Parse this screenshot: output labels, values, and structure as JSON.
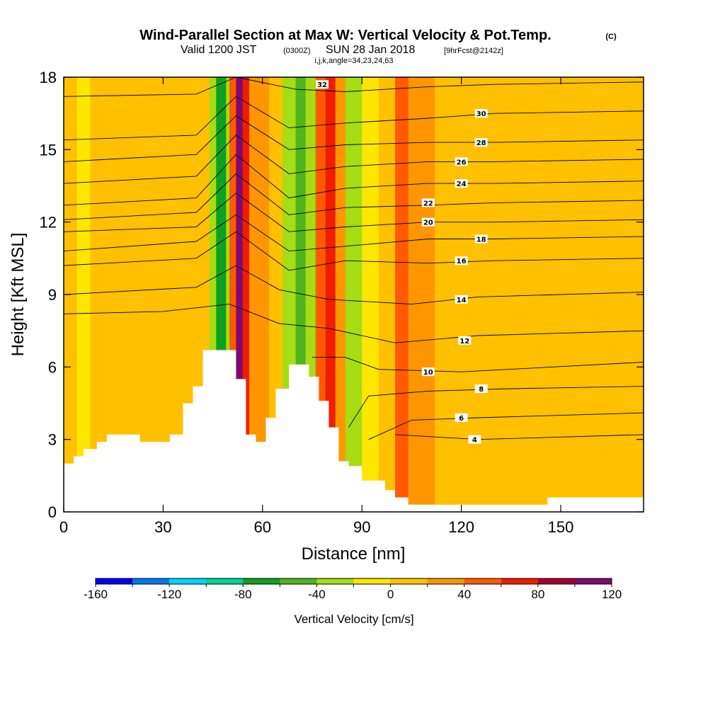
{
  "header": {
    "title": "Wind-Parallel Section at Max W: Vertical Velocity & Pot.Temp.",
    "title_mark": "(C)",
    "valid_prefix": "Valid 1200 JST",
    "valid_utc": "(0300Z)",
    "valid_date": "SUN 28 Jan 2018",
    "valid_fcst": "[9hrFcst@2142z]",
    "grid_info": "i,j,k,angle=34,23,24,63"
  },
  "chart_data": {
    "type": "heatmap",
    "xlabel": "Distance [nm]",
    "ylabel": "Height [Kft MSL]",
    "xlim": [
      0,
      175
    ],
    "ylim": [
      0,
      18
    ],
    "x_ticks": [
      0,
      30,
      60,
      90,
      120,
      150
    ],
    "y_ticks": [
      0,
      3,
      6,
      9,
      12,
      15,
      18
    ],
    "terrain": [
      [
        0,
        2
      ],
      [
        3,
        2
      ],
      [
        3,
        2.3
      ],
      [
        6,
        2.3
      ],
      [
        6,
        2.6
      ],
      [
        10,
        2.6
      ],
      [
        10,
        2.9
      ],
      [
        13,
        2.9
      ],
      [
        13,
        3.2
      ],
      [
        23,
        3.2
      ],
      [
        23,
        2.9
      ],
      [
        32,
        2.9
      ],
      [
        32,
        3.2
      ],
      [
        36,
        3.2
      ],
      [
        36,
        4.5
      ],
      [
        39,
        4.5
      ],
      [
        39,
        5.2
      ],
      [
        42,
        5.2
      ],
      [
        42,
        6.7
      ],
      [
        52,
        6.7
      ],
      [
        52,
        5.5
      ],
      [
        55,
        5.5
      ],
      [
        55,
        3.2
      ],
      [
        58,
        3.2
      ],
      [
        58,
        2.9
      ],
      [
        61,
        2.9
      ],
      [
        61,
        3.9
      ],
      [
        64,
        3.9
      ],
      [
        64,
        5.1
      ],
      [
        68,
        5.1
      ],
      [
        68,
        6.1
      ],
      [
        74,
        6.1
      ],
      [
        74,
        5.6
      ],
      [
        77,
        5.6
      ],
      [
        77,
        4.6
      ],
      [
        80,
        4.6
      ],
      [
        80,
        3.5
      ],
      [
        83,
        3.5
      ],
      [
        83,
        2.1
      ],
      [
        86,
        2.1
      ],
      [
        86,
        1.9
      ],
      [
        90,
        1.9
      ],
      [
        90,
        1.3
      ],
      [
        97,
        1.3
      ],
      [
        97,
        0.9
      ],
      [
        100,
        0.9
      ],
      [
        100,
        0.6
      ],
      [
        104,
        0.6
      ],
      [
        104,
        0.3
      ],
      [
        146,
        0.3
      ],
      [
        146,
        0.6
      ],
      [
        175,
        0.6
      ],
      [
        175,
        0
      ]
    ],
    "colorbar": {
      "label": "Vertical Velocity [cm/s]",
      "tick_labels": [
        "-160",
        "-120",
        "-80",
        "-40",
        "0",
        "40",
        "80",
        "120"
      ],
      "levels": [
        -160,
        -140,
        -120,
        -100,
        -80,
        -60,
        -40,
        -20,
        0,
        20,
        40,
        60,
        80,
        100,
        120
      ],
      "colors": [
        "#0000f0",
        "#0078f0",
        "#00d7ff",
        "#00d29b",
        "#10a020",
        "#50b41e",
        "#a6dc14",
        "#ffe600",
        "#ffc000",
        "#ff9600",
        "#ff5a00",
        "#f01e00",
        "#a50032",
        "#7f0a6e"
      ]
    },
    "velocity_bands": [
      {
        "x": 0,
        "v": 5
      },
      {
        "x": 4,
        "v": -5
      },
      {
        "x": 8,
        "v": 5
      },
      {
        "x": 14,
        "v": 8
      },
      {
        "x": 20,
        "v": 5
      },
      {
        "x": 30,
        "v": 10
      },
      {
        "x": 40,
        "v": 5
      },
      {
        "x": 44,
        "v": -30
      },
      {
        "x": 46,
        "v": -70
      },
      {
        "x": 49,
        "v": -40
      },
      {
        "x": 50,
        "v": 50
      },
      {
        "x": 52,
        "v": 100
      },
      {
        "x": 54,
        "v": 70
      },
      {
        "x": 56,
        "v": 25
      },
      {
        "x": 62,
        "v": 10
      },
      {
        "x": 66,
        "v": -30
      },
      {
        "x": 70,
        "v": -50
      },
      {
        "x": 73,
        "v": -25
      },
      {
        "x": 76,
        "v": 40
      },
      {
        "x": 79,
        "v": 75
      },
      {
        "x": 82,
        "v": 30
      },
      {
        "x": 85,
        "v": -25
      },
      {
        "x": 90,
        "v": -10
      },
      {
        "x": 95,
        "v": 10
      },
      {
        "x": 100,
        "v": 50
      },
      {
        "x": 104,
        "v": 20
      },
      {
        "x": 112,
        "v": 10
      },
      {
        "x": 130,
        "v": 5
      },
      {
        "x": 150,
        "v": 12
      },
      {
        "x": 160,
        "v": 5
      },
      {
        "x": 175,
        "v": 8
      }
    ],
    "theta_contours": [
      {
        "label": "4",
        "pts": [
          [
            100,
            3.2
          ],
          [
            125,
            3.0
          ],
          [
            150,
            3.1
          ],
          [
            175,
            3.2
          ]
        ],
        "label_at": [
          124,
          3.0
        ]
      },
      {
        "label": "6",
        "pts": [
          [
            92,
            3.0
          ],
          [
            105,
            3.8
          ],
          [
            125,
            3.9
          ],
          [
            150,
            4.0
          ],
          [
            175,
            4.1
          ]
        ],
        "label_at": [
          120,
          3.9
        ]
      },
      {
        "label": "8",
        "pts": [
          [
            86,
            3.5
          ],
          [
            92,
            4.8
          ],
          [
            110,
            5.0
          ],
          [
            135,
            5.1
          ],
          [
            175,
            5.2
          ]
        ],
        "label_at": [
          126,
          5.1
        ]
      },
      {
        "label": "10",
        "pts": [
          [
            75,
            6.4
          ],
          [
            85,
            6.4
          ],
          [
            95,
            5.9
          ],
          [
            120,
            5.8
          ],
          [
            175,
            6.2
          ]
        ],
        "label_at": [
          110,
          5.8
        ]
      },
      {
        "label": "12",
        "pts": [
          [
            0,
            8.2
          ],
          [
            30,
            8.3
          ],
          [
            50,
            8.6
          ],
          [
            65,
            7.8
          ],
          [
            80,
            7.6
          ],
          [
            100,
            7.0
          ],
          [
            125,
            7.3
          ],
          [
            175,
            7.5
          ]
        ],
        "label_at": [
          121,
          7.1
        ]
      },
      {
        "label": "14",
        "pts": [
          [
            0,
            9.0
          ],
          [
            40,
            9.3
          ],
          [
            52,
            10.2
          ],
          [
            65,
            9.2
          ],
          [
            80,
            8.8
          ],
          [
            105,
            8.6
          ],
          [
            125,
            8.9
          ],
          [
            175,
            9.1
          ]
        ],
        "label_at": [
          120,
          8.8
        ]
      },
      {
        "label": "16",
        "pts": [
          [
            0,
            10.2
          ],
          [
            40,
            10.5
          ],
          [
            52,
            11.6
          ],
          [
            68,
            10.0
          ],
          [
            85,
            10.4
          ],
          [
            110,
            10.3
          ],
          [
            130,
            10.4
          ],
          [
            175,
            10.5
          ]
        ],
        "label_at": [
          120,
          10.4
        ]
      },
      {
        "label": "18",
        "pts": [
          [
            0,
            10.8
          ],
          [
            40,
            11.2
          ],
          [
            52,
            12.3
          ],
          [
            68,
            10.8
          ],
          [
            85,
            11.0
          ],
          [
            110,
            11.3
          ],
          [
            130,
            11.3
          ],
          [
            175,
            11.4
          ]
        ],
        "label_at": [
          126,
          11.3
        ]
      },
      {
        "label": "20",
        "pts": [
          [
            0,
            11.6
          ],
          [
            40,
            11.8
          ],
          [
            52,
            13.2
          ],
          [
            68,
            11.6
          ],
          [
            85,
            11.8
          ],
          [
            110,
            12.0
          ],
          [
            130,
            12.0
          ],
          [
            175,
            12.1
          ]
        ],
        "label_at": [
          110,
          12.0
        ]
      },
      {
        "label": "22",
        "pts": [
          [
            0,
            12.1
          ],
          [
            40,
            12.4
          ],
          [
            52,
            14.0
          ],
          [
            68,
            12.3
          ],
          [
            85,
            12.6
          ],
          [
            110,
            12.7
          ],
          [
            130,
            12.8
          ],
          [
            175,
            12.9
          ]
        ],
        "label_at": [
          110,
          12.8
        ]
      },
      {
        "label": "24",
        "pts": [
          [
            0,
            12.7
          ],
          [
            40,
            13.0
          ],
          [
            52,
            14.8
          ],
          [
            68,
            13.0
          ],
          [
            85,
            13.4
          ],
          [
            110,
            13.6
          ],
          [
            130,
            13.6
          ],
          [
            175,
            13.7
          ]
        ],
        "label_at": [
          120,
          13.6
        ]
      },
      {
        "label": "26",
        "pts": [
          [
            0,
            13.6
          ],
          [
            40,
            13.9
          ],
          [
            52,
            15.6
          ],
          [
            68,
            14.0
          ],
          [
            85,
            14.3
          ],
          [
            110,
            14.5
          ],
          [
            130,
            14.5
          ],
          [
            175,
            14.6
          ]
        ],
        "label_at": [
          120,
          14.5
        ]
      },
      {
        "label": "28",
        "pts": [
          [
            0,
            14.5
          ],
          [
            40,
            14.8
          ],
          [
            52,
            16.4
          ],
          [
            68,
            15.0
          ],
          [
            85,
            15.2
          ],
          [
            110,
            15.3
          ],
          [
            130,
            15.3
          ],
          [
            175,
            15.4
          ]
        ],
        "label_at": [
          126,
          15.3
        ]
      },
      {
        "label": "30",
        "pts": [
          [
            0,
            15.4
          ],
          [
            40,
            15.6
          ],
          [
            52,
            17.2
          ],
          [
            68,
            15.9
          ],
          [
            85,
            16.1
          ],
          [
            110,
            16.3
          ],
          [
            130,
            16.5
          ],
          [
            175,
            16.6
          ]
        ],
        "label_at": [
          126,
          16.5
        ]
      },
      {
        "label": "32",
        "pts": [
          [
            0,
            17.2
          ],
          [
            40,
            17.3
          ],
          [
            52,
            18.0
          ],
          [
            70,
            17.5
          ],
          [
            85,
            17.4
          ],
          [
            110,
            17.6
          ],
          [
            130,
            17.7
          ],
          [
            175,
            17.8
          ]
        ],
        "label_at": [
          78,
          17.7
        ]
      }
    ]
  }
}
